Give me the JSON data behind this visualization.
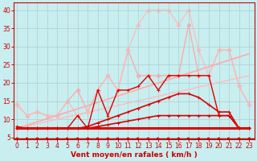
{
  "background_color": "#c8eef0",
  "grid_color": "#aacccc",
  "xlabel": "Vent moyen/en rafales ( km/h )",
  "x_ticks": [
    0,
    1,
    2,
    3,
    4,
    5,
    6,
    7,
    8,
    9,
    10,
    11,
    12,
    13,
    14,
    15,
    16,
    17,
    18,
    19,
    20,
    21,
    22,
    23
  ],
  "ylim": [
    4.5,
    42
  ],
  "xlim": [
    -0.3,
    23.5
  ],
  "yticks": [
    5,
    10,
    15,
    20,
    25,
    30,
    35,
    40
  ],
  "lines": [
    {
      "x": [
        0,
        1,
        2,
        3,
        4,
        5,
        6,
        7,
        8,
        9,
        10,
        11,
        12,
        13,
        14,
        15,
        16,
        17,
        18,
        19,
        20,
        21,
        22,
        23
      ],
      "y": [
        7.5,
        7.5,
        7.5,
        7.5,
        7.5,
        7.5,
        7.5,
        7.5,
        7.5,
        7.5,
        7.5,
        7.5,
        7.5,
        7.5,
        7.5,
        7.5,
        7.5,
        7.5,
        7.5,
        7.5,
        7.5,
        7.5,
        7.5,
        7.5
      ],
      "color": "#dd0000",
      "linewidth": 2.2,
      "marker": null,
      "zorder": 5
    },
    {
      "x": [
        0,
        1,
        2,
        3,
        4,
        5,
        6,
        7,
        8,
        9,
        10,
        11,
        12,
        13,
        14,
        15,
        16,
        17,
        18,
        19,
        20,
        21,
        22,
        23
      ],
      "y": [
        7.5,
        7.5,
        7.5,
        7.5,
        7.5,
        7.5,
        7.5,
        7.5,
        8,
        8.5,
        9,
        9.5,
        10,
        10.5,
        11,
        11,
        11,
        11,
        11,
        11,
        11,
        11,
        7.5,
        7.5
      ],
      "color": "#dd0000",
      "linewidth": 1.2,
      "marker": "+",
      "markersize": 3.5,
      "zorder": 4
    },
    {
      "x": [
        0,
        1,
        2,
        3,
        4,
        5,
        6,
        7,
        8,
        9,
        10,
        11,
        12,
        13,
        14,
        15,
        16,
        17,
        18,
        19,
        20,
        21,
        22,
        23
      ],
      "y": [
        7.5,
        7.5,
        7.5,
        7.5,
        7.5,
        7.5,
        7.5,
        8,
        9,
        10,
        11,
        12,
        13,
        14,
        15,
        16,
        17,
        17,
        16,
        14,
        12,
        12,
        7.5,
        7.5
      ],
      "color": "#dd0000",
      "linewidth": 1.2,
      "marker": "+",
      "markersize": 3.5,
      "zorder": 4
    },
    {
      "x": [
        0,
        1,
        2,
        3,
        4,
        5,
        6,
        7,
        8,
        9,
        10,
        11,
        12,
        13,
        14,
        15,
        16,
        17,
        18,
        19,
        20,
        21,
        22,
        23
      ],
      "y": [
        8,
        7.5,
        7.5,
        7.5,
        7.5,
        7.5,
        11,
        7.5,
        18,
        11,
        18,
        18,
        19,
        22,
        18,
        22,
        22,
        22,
        22,
        22,
        11,
        11,
        7.5,
        7.5
      ],
      "color": "#dd0000",
      "linewidth": 1.0,
      "marker": "+",
      "markersize": 3.5,
      "zorder": 3
    },
    {
      "x": [
        0,
        23
      ],
      "y": [
        7.5,
        28
      ],
      "color": "#ffaaaa",
      "linewidth": 1.2,
      "marker": null,
      "zorder": 2
    },
    {
      "x": [
        0,
        23
      ],
      "y": [
        7.5,
        22
      ],
      "color": "#ffbbbb",
      "linewidth": 1.0,
      "marker": null,
      "zorder": 2
    },
    {
      "x": [
        0,
        1,
        2,
        3,
        4,
        5,
        6,
        7,
        8,
        9,
        10,
        11,
        12,
        13,
        14,
        15,
        16,
        17,
        18,
        19,
        20,
        21,
        22,
        23
      ],
      "y": [
        14,
        11,
        12,
        11,
        11,
        15,
        18,
        12,
        18,
        22,
        18,
        29,
        22,
        22,
        22,
        22,
        22,
        36,
        22,
        22,
        29,
        29,
        19,
        14
      ],
      "color": "#ffaaaa",
      "linewidth": 1.0,
      "marker": "D",
      "markersize": 2.5,
      "zorder": 1
    },
    {
      "x": [
        0,
        1,
        2,
        3,
        4,
        5,
        6,
        7,
        8,
        9,
        10,
        11,
        12,
        13,
        14,
        15,
        16,
        17,
        18,
        19,
        20,
        21,
        22,
        23
      ],
      "y": [
        14,
        11,
        12,
        11,
        11,
        15,
        11,
        12,
        18,
        22,
        18,
        29,
        36,
        40,
        40,
        40,
        36,
        40,
        29,
        22,
        29,
        29,
        19,
        14
      ],
      "color": "#ffbbbb",
      "linewidth": 0.9,
      "marker": "D",
      "markersize": 2.5,
      "zorder": 1
    }
  ],
  "tick_fontsize": 5.5,
  "xlabel_fontsize": 6.5
}
